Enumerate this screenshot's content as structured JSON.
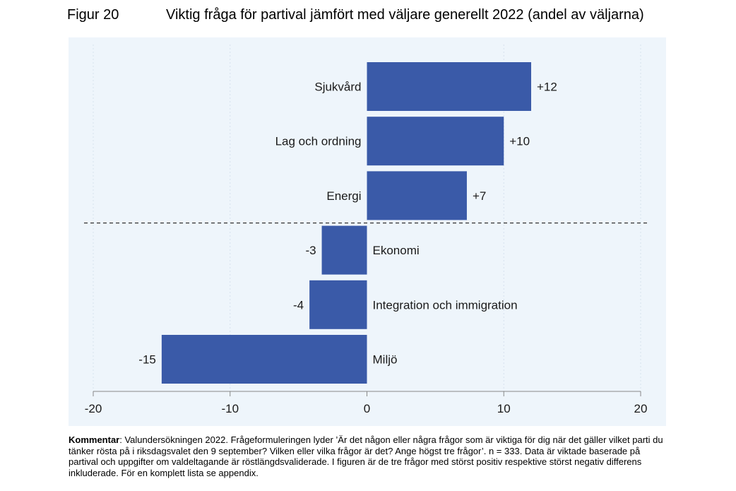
{
  "figure": {
    "label": "Figur 20",
    "title": "Viktig fråga för partival jämfört med väljare generellt 2022 (andel av väljarna)"
  },
  "colors": {
    "bar": "#3a5aa8",
    "plot_background": "#eef5fb",
    "axis": "#888888",
    "gridline": "#d6e2ee",
    "divider": "#333333"
  },
  "chart_data": {
    "type": "bar",
    "orientation": "horizontal",
    "title": "",
    "xlabel": "",
    "ylabel": "",
    "categories": [
      "Sjukvård",
      "Lag och ordning",
      "Energi",
      "Ekonomi",
      "Integration och immigration",
      "Miljö"
    ],
    "values": [
      12,
      10,
      7.3,
      -3.3,
      -4.2,
      -15
    ],
    "value_labels": [
      "+12",
      "+10",
      "+7",
      "-3",
      "-4",
      "-15"
    ],
    "xlim": [
      -20,
      20
    ],
    "xticks": [
      -20,
      -10,
      0,
      10,
      20
    ],
    "xtick_labels": [
      "-20",
      "-10",
      "0",
      "10",
      "20"
    ],
    "grid": true,
    "divider_after_index": 2
  },
  "comment": {
    "lead": "Kommentar",
    "text": ": Valundersökningen 2022. Frågeformuleringen lyder ’Är det någon eller några frågor som är viktiga för dig när det gäller vilket parti du tänker rösta på i riksdagsvalet den 9 september? Vilken eller vilka frågor är det? Ange högst tre frågor’. n = 333. Data är viktade baserade på partival och uppgifter om valdeltagande är röstlängdsvaliderade. I figuren är de tre frågor med störst positiv respektive störst negativ differens inkluderade. För en komplett lista se appendix."
  }
}
